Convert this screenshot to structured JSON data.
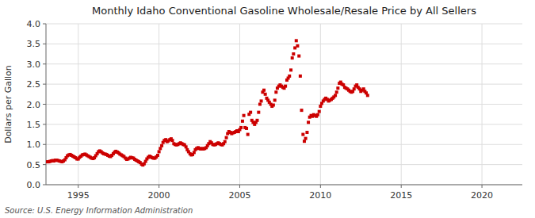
{
  "chart_data": {
    "type": "scatter",
    "title": "Monthly Idaho Conventional Gasoline Wholesale/Resale Price by All Sellers",
    "ylabel": "Dollars per Gallon",
    "annotations": [
      "Source: U.S. Energy Information Administration"
    ],
    "color": "#cc0000",
    "marker": "square",
    "grid": true,
    "xlim": [
      1993.0,
      2022.5
    ],
    "ylim": [
      0.0,
      4.0
    ],
    "xticks": [
      1995,
      2000,
      2005,
      2010,
      2015,
      2020
    ],
    "yticks": [
      {
        "value": 0.0,
        "label": "0.0"
      },
      0.5,
      {
        "value": 1.0,
        "label": "1.0"
      },
      1.5,
      {
        "value": 2.0,
        "label": "2.0"
      },
      2.5,
      {
        "value": 3.0,
        "label": "3.0"
      },
      3.5,
      {
        "value": 4.0,
        "label": "4.0"
      }
    ],
    "x": [
      1993.08,
      1993.17,
      1993.25,
      1993.33,
      1993.42,
      1993.5,
      1993.58,
      1993.67,
      1993.75,
      1993.83,
      1993.92,
      1994.0,
      1994.08,
      1994.17,
      1994.25,
      1994.33,
      1994.42,
      1994.5,
      1994.58,
      1994.67,
      1994.75,
      1994.83,
      1994.92,
      1995.0,
      1995.08,
      1995.17,
      1995.25,
      1995.33,
      1995.42,
      1995.5,
      1995.58,
      1995.67,
      1995.75,
      1995.83,
      1995.92,
      1996.0,
      1996.08,
      1996.17,
      1996.25,
      1996.33,
      1996.42,
      1996.5,
      1996.58,
      1996.67,
      1996.75,
      1996.83,
      1996.92,
      1997.0,
      1997.08,
      1997.17,
      1997.25,
      1997.33,
      1997.42,
      1997.5,
      1997.58,
      1997.67,
      1997.75,
      1997.83,
      1997.92,
      1998.0,
      1998.08,
      1998.17,
      1998.25,
      1998.33,
      1998.42,
      1998.5,
      1998.58,
      1998.67,
      1998.75,
      1998.83,
      1998.92,
      1999.0,
      1999.08,
      1999.17,
      1999.25,
      1999.33,
      1999.42,
      1999.5,
      1999.58,
      1999.67,
      1999.75,
      1999.83,
      1999.92,
      2000.0,
      2000.08,
      2000.17,
      2000.25,
      2000.33,
      2000.42,
      2000.5,
      2000.58,
      2000.67,
      2000.75,
      2000.83,
      2000.92,
      2001.0,
      2001.08,
      2001.17,
      2001.25,
      2001.33,
      2001.42,
      2001.5,
      2001.58,
      2001.67,
      2001.75,
      2001.83,
      2001.92,
      2002.0,
      2002.08,
      2002.17,
      2002.25,
      2002.33,
      2002.42,
      2002.5,
      2002.58,
      2002.67,
      2002.75,
      2002.83,
      2002.92,
      2003.0,
      2003.08,
      2003.17,
      2003.25,
      2003.33,
      2003.42,
      2003.5,
      2003.58,
      2003.67,
      2003.75,
      2003.83,
      2003.92,
      2004.0,
      2004.08,
      2004.17,
      2004.25,
      2004.33,
      2004.42,
      2004.5,
      2004.58,
      2004.67,
      2004.75,
      2004.83,
      2004.92,
      2005.0,
      2005.08,
      2005.17,
      2005.25,
      2005.33,
      2005.42,
      2005.5,
      2005.58,
      2005.67,
      2005.75,
      2005.83,
      2005.92,
      2006.0,
      2006.08,
      2006.17,
      2006.25,
      2006.33,
      2006.42,
      2006.5,
      2006.58,
      2006.67,
      2006.75,
      2006.83,
      2006.92,
      2007.0,
      2007.08,
      2007.17,
      2007.25,
      2007.33,
      2007.42,
      2007.5,
      2007.58,
      2007.67,
      2007.75,
      2007.83,
      2007.92,
      2008.0,
      2008.08,
      2008.17,
      2008.25,
      2008.33,
      2008.42,
      2008.5,
      2008.58,
      2008.67,
      2008.75,
      2008.83,
      2008.92,
      2009.0,
      2009.08,
      2009.17,
      2009.25,
      2009.33,
      2009.42,
      2009.5,
      2009.58,
      2009.67,
      2009.75,
      2009.83,
      2009.92,
      2010.0,
      2010.08,
      2010.17,
      2010.25,
      2010.33,
      2010.42,
      2010.5,
      2010.58,
      2010.67,
      2010.75,
      2010.83,
      2010.92,
      2011.0,
      2011.08,
      2011.17,
      2011.25,
      2011.33,
      2011.42,
      2011.5,
      2011.58,
      2011.67,
      2011.75,
      2011.83,
      2011.92,
      2012.0,
      2012.08,
      2012.17,
      2012.25,
      2012.33,
      2012.42,
      2012.5,
      2012.58,
      2012.67,
      2012.75,
      2012.83,
      2012.92
    ],
    "values": [
      0.57,
      0.57,
      0.58,
      0.59,
      0.6,
      0.59,
      0.61,
      0.61,
      0.6,
      0.59,
      0.58,
      0.57,
      0.59,
      0.62,
      0.67,
      0.72,
      0.74,
      0.75,
      0.73,
      0.71,
      0.69,
      0.67,
      0.64,
      0.64,
      0.68,
      0.71,
      0.74,
      0.75,
      0.76,
      0.74,
      0.72,
      0.7,
      0.68,
      0.66,
      0.65,
      0.67,
      0.72,
      0.77,
      0.82,
      0.84,
      0.82,
      0.79,
      0.77,
      0.76,
      0.75,
      0.73,
      0.71,
      0.7,
      0.73,
      0.77,
      0.81,
      0.83,
      0.81,
      0.79,
      0.76,
      0.74,
      0.72,
      0.7,
      0.66,
      0.63,
      0.64,
      0.66,
      0.68,
      0.67,
      0.66,
      0.63,
      0.61,
      0.59,
      0.57,
      0.55,
      0.51,
      0.49,
      0.52,
      0.58,
      0.64,
      0.68,
      0.71,
      0.69,
      0.67,
      0.66,
      0.66,
      0.69,
      0.73,
      0.82,
      0.9,
      0.97,
      1.05,
      1.1,
      1.12,
      1.07,
      1.09,
      1.12,
      1.14,
      1.1,
      1.02,
      1.0,
      0.99,
      1.0,
      1.02,
      1.04,
      1.02,
      1.0,
      0.99,
      0.94,
      0.87,
      0.82,
      0.77,
      0.74,
      0.75,
      0.8,
      0.87,
      0.9,
      0.92,
      0.9,
      0.89,
      0.9,
      0.89,
      0.9,
      0.92,
      0.97,
      1.02,
      1.07,
      1.04,
      1.0,
      0.99,
      1.0,
      1.02,
      1.04,
      1.02,
      1.0,
      0.99,
      1.02,
      1.07,
      1.17,
      1.27,
      1.32,
      1.3,
      1.27,
      1.29,
      1.3,
      1.32,
      1.34,
      1.32,
      1.37,
      1.42,
      1.58,
      1.72,
      1.42,
      1.4,
      1.25,
      1.75,
      1.8,
      1.6,
      1.55,
      1.5,
      1.55,
      1.6,
      1.8,
      2.0,
      2.08,
      2.3,
      2.35,
      2.25,
      2.15,
      2.1,
      2.05,
      2.0,
      1.95,
      1.98,
      2.1,
      2.3,
      2.4,
      2.45,
      2.48,
      2.45,
      2.42,
      2.4,
      2.45,
      2.6,
      2.65,
      2.7,
      2.85,
      3.15,
      3.25,
      3.4,
      3.58,
      3.45,
      3.2,
      2.7,
      1.85,
      1.25,
      1.08,
      1.15,
      1.3,
      1.55,
      1.68,
      1.72,
      1.7,
      1.74,
      1.72,
      1.7,
      1.74,
      1.82,
      1.95,
      2.02,
      2.08,
      2.12,
      2.15,
      2.12,
      2.08,
      2.1,
      2.12,
      2.15,
      2.18,
      2.22,
      2.3,
      2.4,
      2.52,
      2.55,
      2.5,
      2.48,
      2.42,
      2.4,
      2.38,
      2.35,
      2.32,
      2.3,
      2.32,
      2.38,
      2.45,
      2.48,
      2.42,
      2.38,
      2.32,
      2.35,
      2.38,
      2.32,
      2.28,
      2.22
    ]
  }
}
